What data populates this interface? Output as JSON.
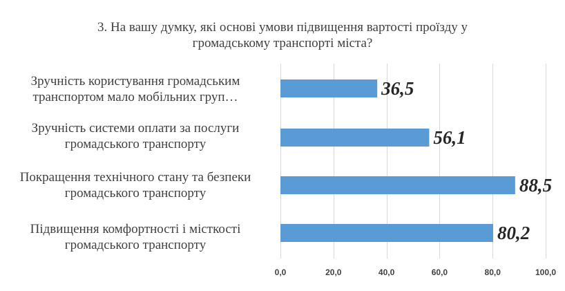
{
  "chart_data": {
    "type": "bar",
    "orientation": "horizontal",
    "title_lines": [
      "3. На вашу думку, які основі умови підвищення вартості проїзду у",
      "громадському транспорті міста?"
    ],
    "categories": [
      [
        "Зручність користування громадським",
        "транспортом мало мобільних груп…"
      ],
      [
        "Зручність системи оплати за послуги",
        "громадського транспорту"
      ],
      [
        "Покращення технічного стану та безпеки",
        "громадського транспорту"
      ],
      [
        "Підвищення комфортності і місткості",
        "громадського транспорту"
      ]
    ],
    "values": [
      36.5,
      56.1,
      88.5,
      80.2
    ],
    "data_labels": [
      "36,5",
      "56,1",
      "88,5",
      "80,2"
    ],
    "xlim": [
      0,
      100
    ],
    "x_ticks": [
      0,
      20,
      40,
      60,
      80,
      100
    ],
    "x_tick_labels": [
      "0,0",
      "20,0",
      "40,0",
      "60,0",
      "80,0",
      "100,0"
    ],
    "grid": true,
    "legend": "none",
    "bar_color": "#5b9bd5",
    "grid_color": "#d9d9d9",
    "text_color": "#404040",
    "label_color": "#262626"
  }
}
